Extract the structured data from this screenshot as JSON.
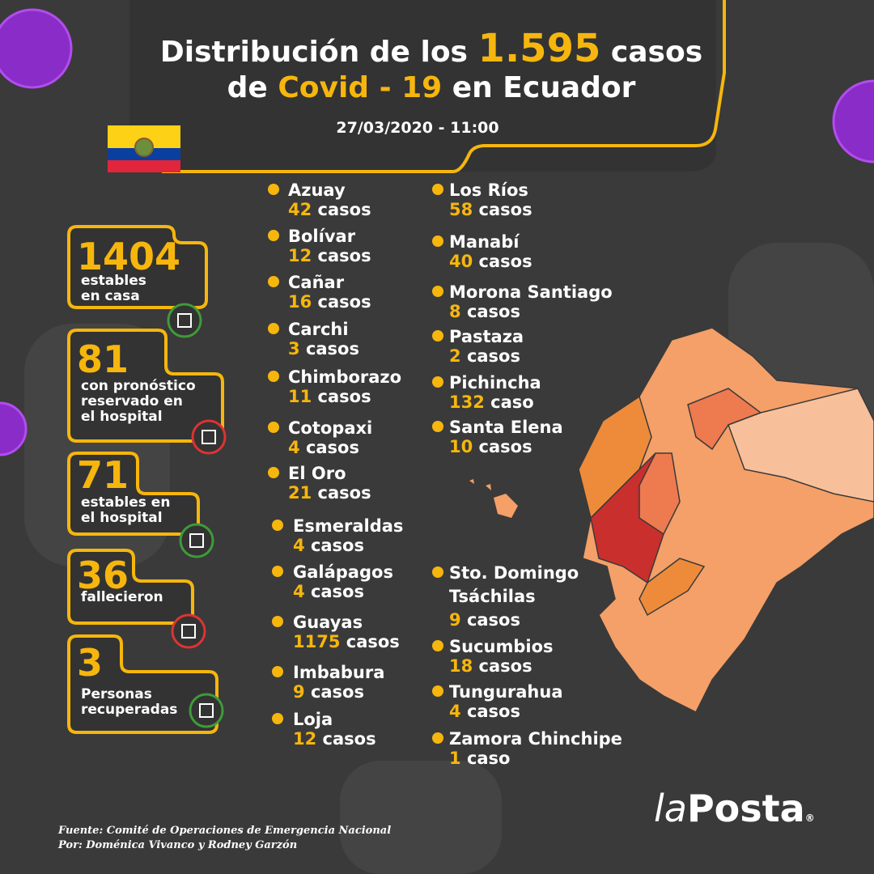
{
  "header": {
    "title_parts": [
      "Distribución de los",
      "1.595",
      "casos"
    ],
    "subtitle_parts": [
      "de",
      "Covid - 19",
      "en Ecuador"
    ],
    "date": "27/03/2020 - 11:00"
  },
  "stats": [
    {
      "number": 1404,
      "label": [
        "estables",
        "en casa"
      ]
    },
    {
      "number": 81,
      "label": [
        "con pronóstico",
        "reservado en",
        "el hospital"
      ]
    },
    {
      "number": 71,
      "label": [
        "estables en",
        "el hospital"
      ]
    },
    {
      "number": 36,
      "label": [
        "fallecieron"
      ]
    },
    {
      "number": 3,
      "label": [
        "Personas",
        "recuperadas"
      ]
    }
  ],
  "provinces": [
    {
      "name": "Azuay",
      "count": 42,
      "unit": "casos"
    },
    {
      "name": "Bolívar",
      "count": 12,
      "unit": "casos"
    },
    {
      "name": "Cañar",
      "count": 16,
      "unit": "casos"
    },
    {
      "name": "Carchi",
      "count": 3,
      "unit": "casos"
    },
    {
      "name": "Chimborazo",
      "count": 11,
      "unit": "casos"
    },
    {
      "name": "Cotopaxi",
      "count": 4,
      "unit": "casos"
    },
    {
      "name": "El Oro",
      "count": 21,
      "unit": "casos"
    },
    {
      "name": "Esmeraldas",
      "count": 4,
      "unit": "casos"
    },
    {
      "name": "Galápagos",
      "count": 4,
      "unit": "casos"
    },
    {
      "name": "Guayas",
      "count": 1175,
      "unit": "casos"
    },
    {
      "name": "Imbabura",
      "count": 9,
      "unit": "casos"
    },
    {
      "name": "Loja",
      "count": 12,
      "unit": "casos"
    },
    {
      "name": "Los Ríos",
      "count": 58,
      "unit": "casos"
    },
    {
      "name": "Manabí",
      "count": 40,
      "unit": "casos"
    },
    {
      "name": "Morona Santiago",
      "count": 8,
      "unit": "casos"
    },
    {
      "name": "Pastaza",
      "count": 2,
      "unit": "casos"
    },
    {
      "name": "Pichincha",
      "count": 132,
      "unit": "caso"
    },
    {
      "name": "Santa Elena",
      "count": 10,
      "unit": "casos"
    },
    {
      "name": [
        "Sto. Domingo",
        "Tsáchilas"
      ],
      "count": 9,
      "unit": "casos"
    },
    {
      "name": "Sucumbios",
      "count": 18,
      "unit": "casos"
    },
    {
      "name": "Tungurahua",
      "count": 4,
      "unit": "casos"
    },
    {
      "name": "Zamora Chinchipe",
      "count": 1,
      "unit": "caso"
    }
  ],
  "footer": {
    "source": "Fuente: Comité de Operaciones de Emergencia Nacional",
    "authors": "Por: Doménica Vivanco y Rodney Garzón"
  },
  "logo": {
    "prefix": "la",
    "name": "Posta",
    "mark": "®"
  }
}
